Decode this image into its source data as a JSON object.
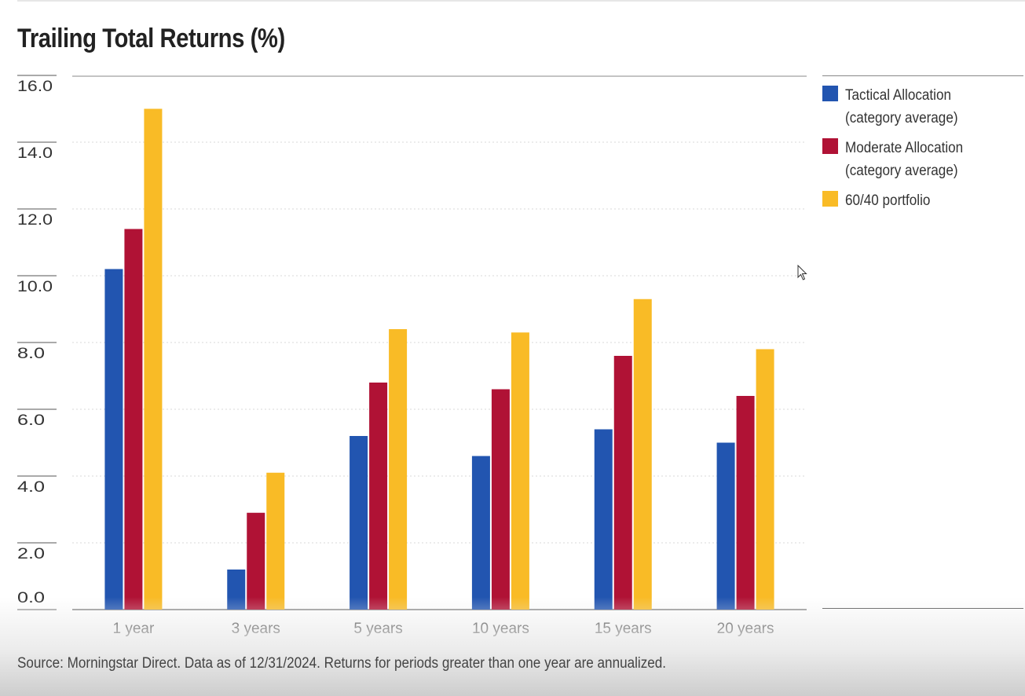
{
  "title": "Trailing Total Returns (%)",
  "source": "Source: Morningstar Direct. Data as of 12/31/2024. Returns for periods greater than one year are annualized.",
  "chart_data": {
    "type": "bar",
    "title": "Trailing Total Returns (%)",
    "categories": [
      "1 year",
      "3 years",
      "5 years",
      "10 years",
      "15 years",
      "20 years"
    ],
    "series": [
      {
        "name": "Tactical Allocation (category average)",
        "color": "#2255b0",
        "values": [
          10.2,
          1.2,
          5.2,
          4.6,
          5.4,
          5.0
        ]
      },
      {
        "name": "Moderate Allocation (category average)",
        "color": "#b01235",
        "values": [
          11.4,
          2.9,
          6.8,
          6.6,
          7.6,
          6.4
        ]
      },
      {
        "name": "60/40 portfolio",
        "color": "#f9bb26",
        "values": [
          15.0,
          4.1,
          8.4,
          8.3,
          9.3,
          7.8
        ]
      }
    ],
    "yticks": [
      "0.0",
      "2.0",
      "4.0",
      "6.0",
      "8.0",
      "10.0",
      "12.0",
      "14.0",
      "16.0"
    ],
    "ylim": [
      0,
      16
    ],
    "grid": true,
    "legend_position": "right"
  },
  "legend": [
    {
      "line1": "Tactical Allocation",
      "line2": "(category average)",
      "color": "#2255b0"
    },
    {
      "line1": "Moderate Allocation",
      "line2": "(category average)",
      "color": "#b01235"
    },
    {
      "line1": "60/40 portfolio",
      "line2": "",
      "color": "#f9bb26"
    }
  ]
}
